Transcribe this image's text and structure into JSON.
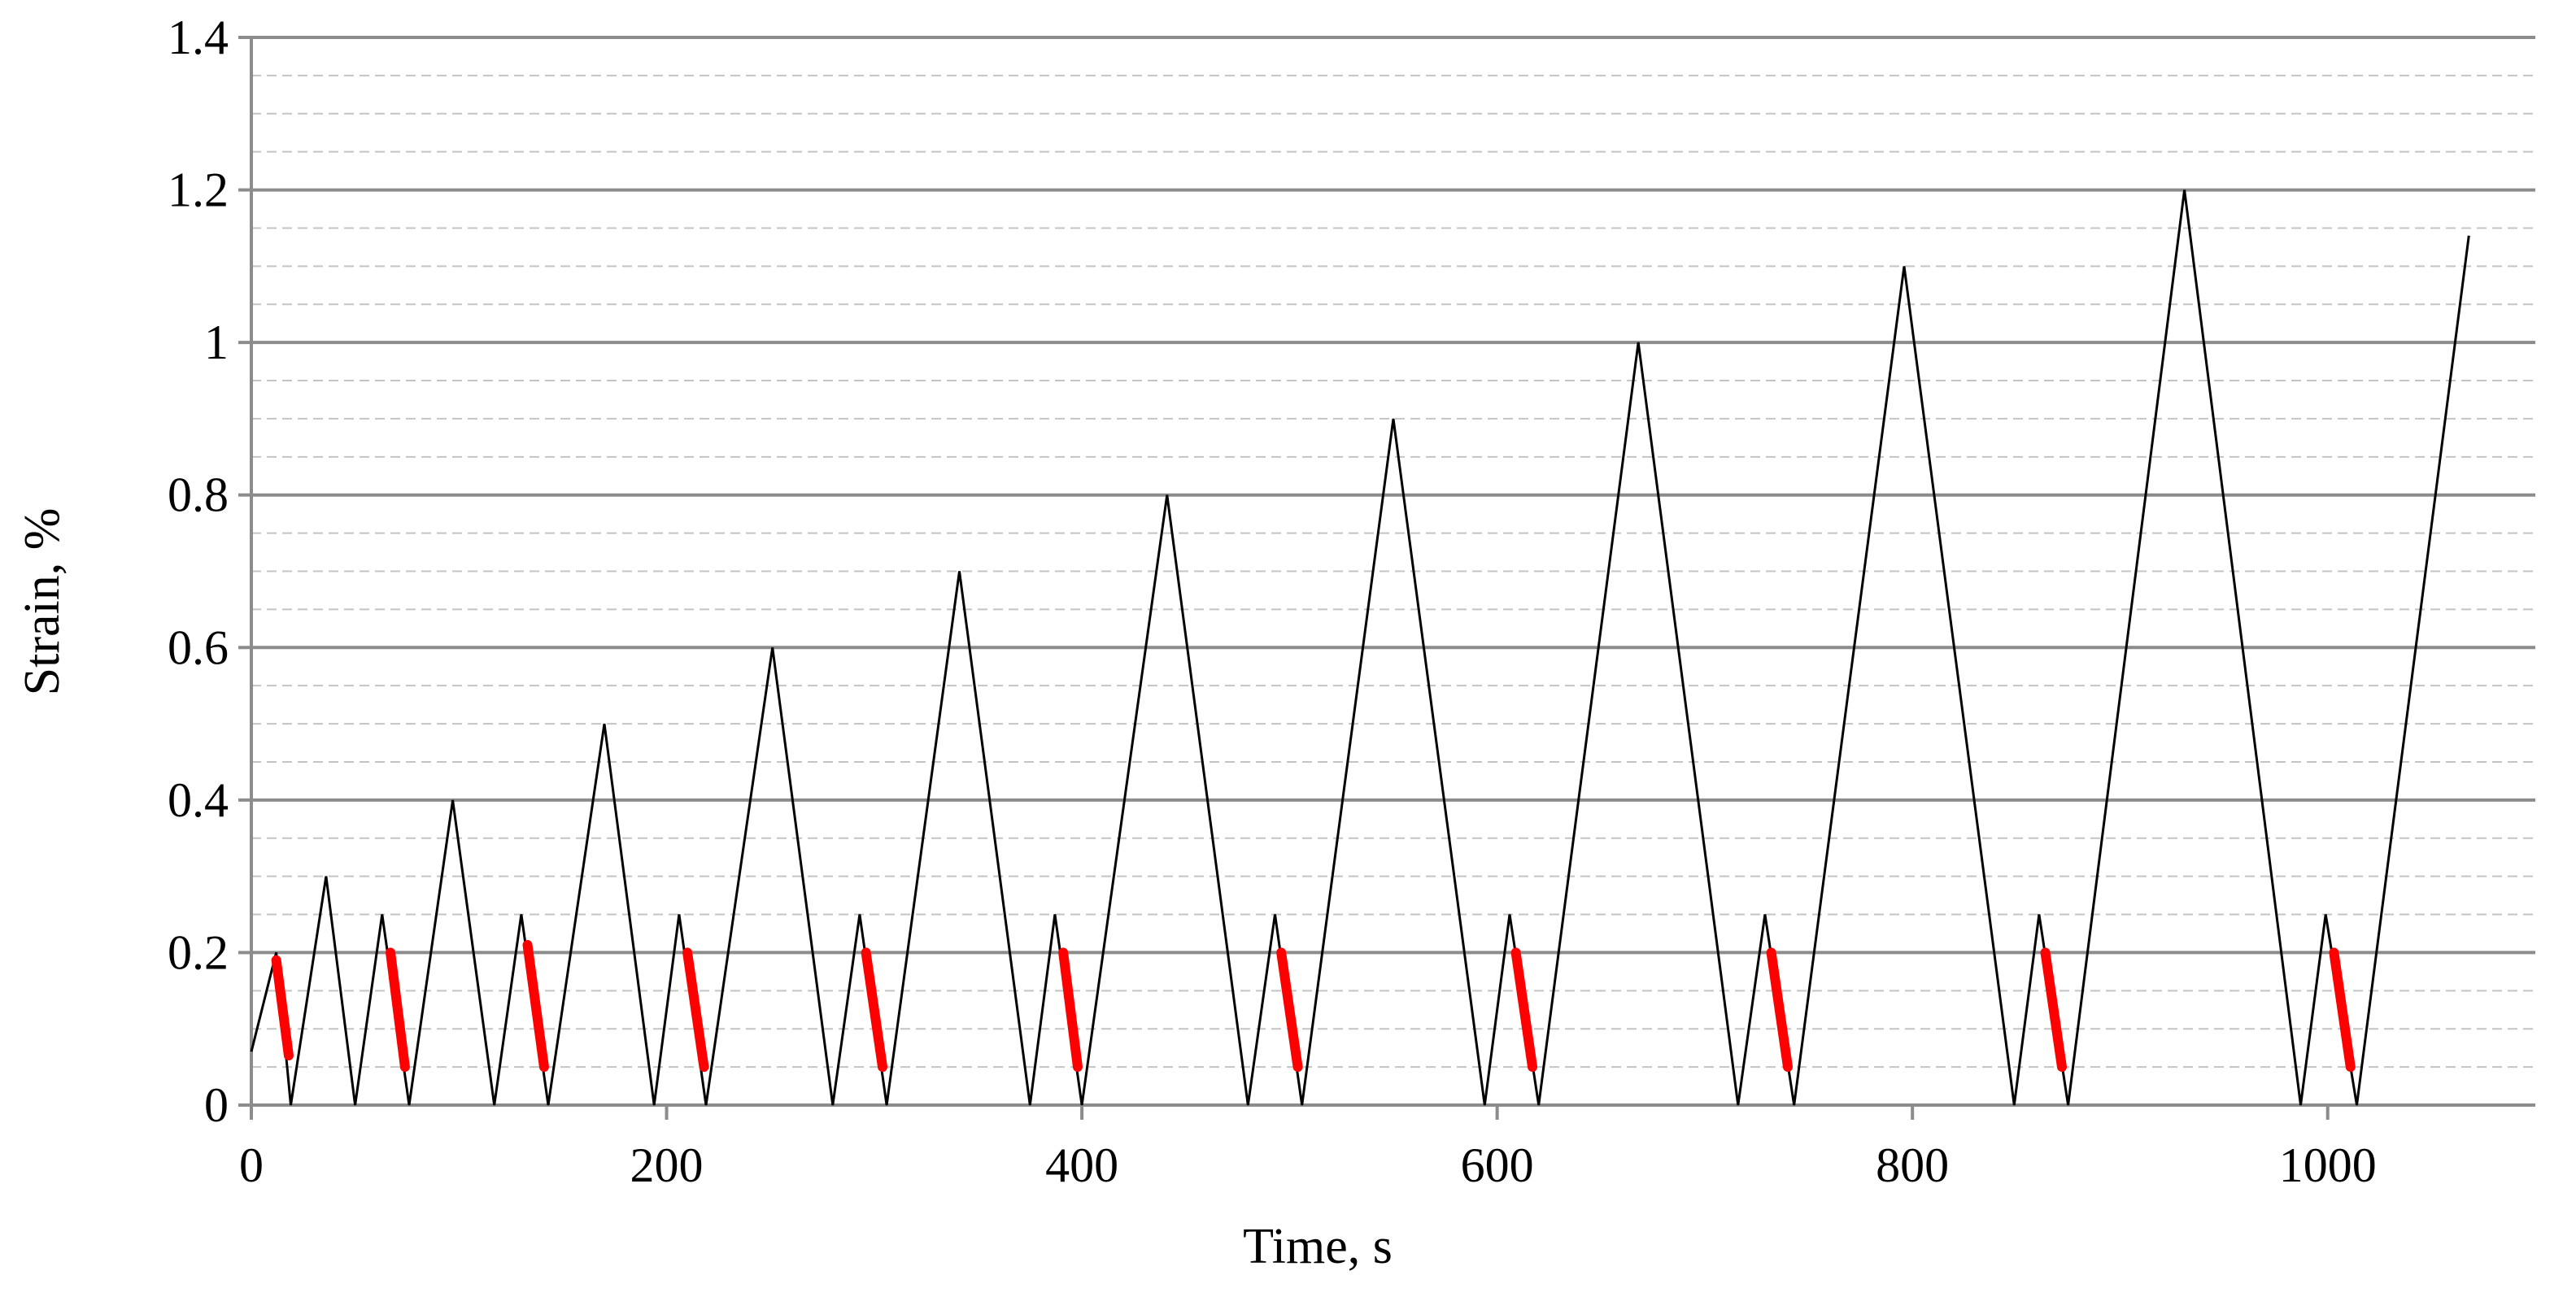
{
  "chart_data": {
    "type": "line",
    "xlabel": "Time, s",
    "ylabel": "Strain, %",
    "xlim": [
      0,
      1100
    ],
    "ylim": [
      0,
      1.4
    ],
    "x_ticks": [
      0,
      200,
      400,
      600,
      800,
      1000
    ],
    "x_tick_labels": [
      "0",
      "200",
      "400",
      "600",
      "800",
      "1000"
    ],
    "y_ticks": [
      0,
      0.2,
      0.4,
      0.6,
      0.8,
      1.0,
      1.2,
      1.4
    ],
    "y_tick_labels": [
      "0",
      "0.2",
      "0.4",
      "0.6",
      "0.8",
      "1",
      "1.2",
      "1.4"
    ],
    "grid": {
      "major": true,
      "minor_dashed": true,
      "minor_step": 0.05
    },
    "legend": "none",
    "colors": {
      "main": "#000000",
      "highlight": "#ff0000",
      "major_grid": "#8c8c8c",
      "minor_grid": "#c4c4c4"
    },
    "series": [
      {
        "x": [
          0,
          12,
          19,
          36,
          50,
          63,
          76,
          97,
          117,
          130,
          143,
          170,
          194,
          206,
          219,
          251,
          280,
          293,
          306,
          341,
          375,
          387,
          400,
          441,
          480,
          493,
          506,
          550,
          594,
          606,
          620,
          668,
          716,
          729,
          743,
          796,
          849,
          861,
          875,
          931,
          987,
          999,
          1014,
          1068
        ],
        "y": [
          0.07,
          0.2,
          0,
          0.3,
          0,
          0.25,
          0,
          0.4,
          0,
          0.25,
          0,
          0.5,
          0,
          0.25,
          0,
          0.6,
          0,
          0.25,
          0,
          0.7,
          0,
          0.25,
          0,
          0.8,
          0,
          0.25,
          0,
          0.9,
          0,
          0.25,
          0,
          1.0,
          0,
          0.25,
          0,
          1.1,
          0,
          0.25,
          0,
          1.2,
          0,
          0.25,
          0,
          1.14
        ]
      },
      {
        "segments": [
          [
            [
              12,
              0.19
            ],
            [
              18,
              0.065
            ]
          ],
          [
            [
              67,
              0.2
            ],
            [
              74,
              0.05
            ]
          ],
          [
            [
              133,
              0.21
            ],
            [
              141,
              0.05
            ]
          ],
          [
            [
              210,
              0.2
            ],
            [
              218,
              0.05
            ]
          ],
          [
            [
              296,
              0.2
            ],
            [
              304,
              0.05
            ]
          ],
          [
            [
              391,
              0.2
            ],
            [
              398,
              0.05
            ]
          ],
          [
            [
              496,
              0.2
            ],
            [
              504,
              0.05
            ]
          ],
          [
            [
              609,
              0.2
            ],
            [
              617,
              0.05
            ]
          ],
          [
            [
              732,
              0.2
            ],
            [
              740,
              0.05
            ]
          ],
          [
            [
              864,
              0.2
            ],
            [
              872,
              0.05
            ]
          ],
          [
            [
              1003,
              0.2
            ],
            [
              1011,
              0.05
            ]
          ]
        ]
      }
    ]
  }
}
